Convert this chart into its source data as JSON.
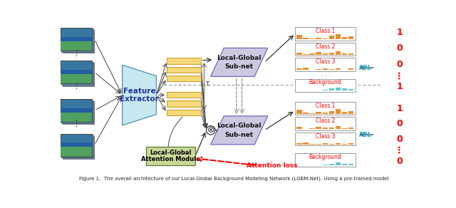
{
  "caption": "Figure 1.  The overall architecture of our Local-Global Background Modeling Network (LGBM-Net). Using a pre-trained model",
  "bg_color": "#ffffff",
  "feature_extractor_color": "#c8e8f0",
  "feature_bar_color": "#f5d878",
  "subnet_color": "#ccc8e0",
  "attention_color": "#c8d898",
  "class_bar_orange": "#e89030",
  "class_bar_cyan": "#60c8c8",
  "class1_bars": [
    0.7,
    0.25,
    0.1,
    0.3,
    0.15,
    0.55,
    0.85,
    0.4,
    0.5
  ],
  "class2_bars": [
    0.35,
    0.1,
    0.15,
    0.4,
    0.25,
    0.35,
    0.5,
    0.15,
    0.25
  ],
  "class3_bars": [
    0.25,
    0.4,
    0.08,
    0.15,
    0.28,
    0.1,
    0.3,
    0.08,
    0.2
  ],
  "bg_bars": [
    0.05,
    0.08,
    0.04,
    0.06,
    0.12,
    0.35,
    0.55,
    0.38,
    0.28
  ],
  "class1_bars2": [
    0.65,
    0.22,
    0.1,
    0.35,
    0.18,
    0.5,
    0.8,
    0.35,
    0.45
  ],
  "class2_bars2": [
    0.4,
    0.08,
    0.2,
    0.38,
    0.22,
    0.3,
    0.48,
    0.12,
    0.22
  ],
  "class3_bars2": [
    0.22,
    0.35,
    0.06,
    0.12,
    0.25,
    0.08,
    0.28,
    0.06,
    0.18
  ],
  "bg_bars2": [
    0.04,
    0.06,
    0.03,
    0.05,
    0.1,
    0.28,
    0.45,
    0.3,
    0.22
  ]
}
